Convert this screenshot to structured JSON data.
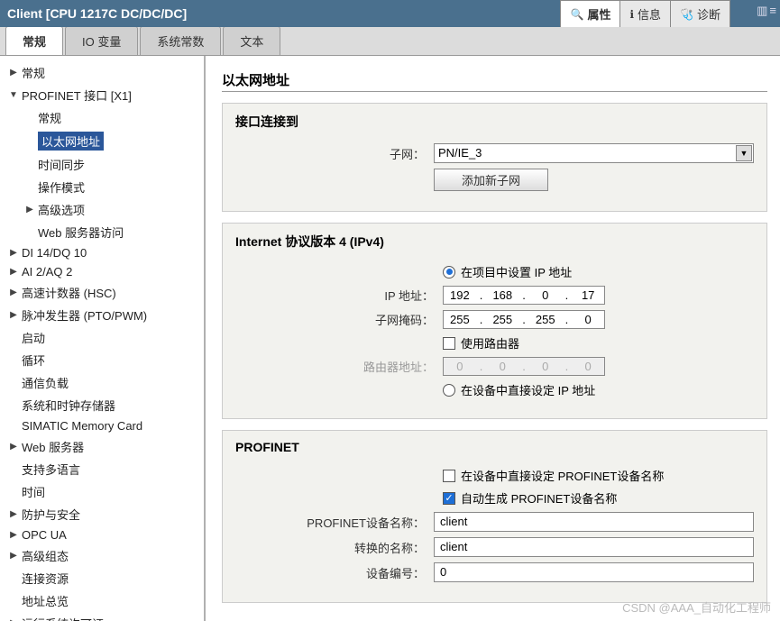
{
  "titlebar": {
    "title": "Client [CPU 1217C DC/DC/DC]",
    "tabs": [
      {
        "label": "属性",
        "active": true,
        "icon": "🔍"
      },
      {
        "label": "信息",
        "active": false,
        "icon": "ℹ"
      },
      {
        "label": "诊断",
        "active": false,
        "icon": "🩺"
      }
    ]
  },
  "maintabs": [
    {
      "label": "常规",
      "active": true
    },
    {
      "label": "IO 变量",
      "active": false
    },
    {
      "label": "系统常数",
      "active": false
    },
    {
      "label": "文本",
      "active": false
    }
  ],
  "tree": {
    "items": [
      {
        "label": "常规",
        "level": 0,
        "arrow": "▶"
      },
      {
        "label": "PROFINET 接口 [X1]",
        "level": 0,
        "arrow": "▼"
      },
      {
        "label": "常规",
        "level": 1,
        "arrow": ""
      },
      {
        "label": "以太网地址",
        "level": 1,
        "arrow": "",
        "selected": true
      },
      {
        "label": "时间同步",
        "level": 1,
        "arrow": ""
      },
      {
        "label": "操作模式",
        "level": 1,
        "arrow": ""
      },
      {
        "label": "高级选项",
        "level": 1,
        "arrow": "▶"
      },
      {
        "label": "Web 服务器访问",
        "level": 1,
        "arrow": ""
      },
      {
        "label": "DI 14/DQ 10",
        "level": 0,
        "arrow": "▶"
      },
      {
        "label": "AI 2/AQ 2",
        "level": 0,
        "arrow": "▶"
      },
      {
        "label": "高速计数器 (HSC)",
        "level": 0,
        "arrow": "▶"
      },
      {
        "label": "脉冲发生器 (PTO/PWM)",
        "level": 0,
        "arrow": "▶"
      },
      {
        "label": "启动",
        "level": 0,
        "arrow": ""
      },
      {
        "label": "循环",
        "level": 0,
        "arrow": ""
      },
      {
        "label": "通信负载",
        "level": 0,
        "arrow": ""
      },
      {
        "label": "系统和时钟存储器",
        "level": 0,
        "arrow": ""
      },
      {
        "label": "SIMATIC Memory Card",
        "level": 0,
        "arrow": ""
      },
      {
        "label": "Web 服务器",
        "level": 0,
        "arrow": "▶"
      },
      {
        "label": "支持多语言",
        "level": 0,
        "arrow": ""
      },
      {
        "label": "时间",
        "level": 0,
        "arrow": ""
      },
      {
        "label": "防护与安全",
        "level": 0,
        "arrow": "▶"
      },
      {
        "label": "OPC UA",
        "level": 0,
        "arrow": "▶"
      },
      {
        "label": "高级组态",
        "level": 0,
        "arrow": "▶"
      },
      {
        "label": "连接资源",
        "level": 0,
        "arrow": ""
      },
      {
        "label": "地址总览",
        "level": 0,
        "arrow": ""
      },
      {
        "label": "运行系统许可证",
        "level": 0,
        "arrow": "▶"
      }
    ]
  },
  "content": {
    "heading": "以太网地址",
    "section_interface": {
      "title": "接口连接到",
      "subnet_label": "子网：",
      "subnet_value": "PN/IE_3",
      "add_subnet_btn": "添加新子网"
    },
    "section_ipv4": {
      "title": "Internet 协议版本 4 (IPv4)",
      "radio_project": "在项目中设置 IP 地址",
      "ip_label": "IP 地址：",
      "ip": [
        "192",
        "168",
        "0",
        "17"
      ],
      "mask_label": "子网掩码：",
      "mask": [
        "255",
        "255",
        "255",
        "0"
      ],
      "use_router": "使用路由器",
      "router_label": "路由器地址：",
      "router": [
        "0",
        "0",
        "0",
        "0"
      ],
      "radio_device": "在设备中直接设定 IP 地址"
    },
    "section_profinet": {
      "title": "PROFINET",
      "check_device": "在设备中直接设定 PROFINET设备名称",
      "check_auto": "自动生成 PROFINET设备名称",
      "name_label": "PROFINET设备名称：",
      "name_value": "client",
      "conv_label": "转换的名称：",
      "conv_value": "client",
      "num_label": "设备编号：",
      "num_value": "0"
    }
  },
  "watermark": "CSDN @AAA_自动化工程师"
}
